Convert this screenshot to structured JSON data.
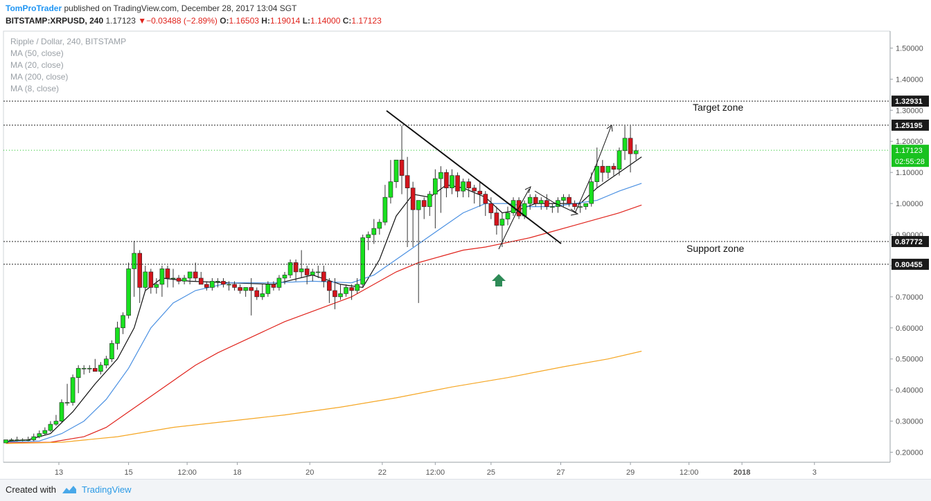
{
  "header": {
    "author": "TomProTrader",
    "published_text": "published on TradingView.com, December 28, 2017 13:04 SGT",
    "symbol": "BITSTAMP:XRPUSD, 240",
    "last": "1.17123",
    "change": "−0.03488 (−2.89%)",
    "o_label": "O:",
    "o_value": "1.16503",
    "h_label": "H:",
    "h_value": "1.19014",
    "l_label": "L:",
    "l_value": "1.14000",
    "c_label": "C:",
    "c_value": "1.17123"
  },
  "legend": {
    "title": "Ripple / Dollar, 240, BITSTAMP",
    "ma50": "MA (50, close)",
    "ma20": "MA (20, close)",
    "ma200": "MA (200, close)",
    "ma8": "MA (8, close)"
  },
  "footer": {
    "created_with": "Created with",
    "brand": "TradingView"
  },
  "colors": {
    "up": "#19e01f",
    "down": "#d4141c",
    "ma8": "#111111",
    "ma20": "#4a90e2",
    "ma50": "#e0231c",
    "ma200": "#f5a623",
    "arrow_up": "#2e8b57",
    "current_price_bg": "#19c21f"
  },
  "chart_data": {
    "type": "candlestick",
    "y_axis": {
      "range": [
        0.17,
        1.55
      ],
      "ticks": [
        "0.20000",
        "0.30000",
        "0.40000",
        "0.50000",
        "0.60000",
        "0.70000",
        "0.80000",
        "0.90000",
        "1.00000",
        "1.10000",
        "1.20000",
        "1.30000",
        "1.40000",
        "1.50000"
      ],
      "tick_values": [
        0.2,
        0.3,
        0.4,
        0.5,
        0.6,
        0.7,
        0.8,
        0.9,
        1.0,
        1.1,
        1.2,
        1.3,
        1.4,
        1.5
      ]
    },
    "x_axis": {
      "labels": [
        "13",
        "15",
        "12:00",
        "18",
        "20",
        "22",
        "12:00",
        "25",
        "27",
        "29",
        "12:00",
        "2018",
        "3"
      ],
      "label_bar_index": [
        9.5,
        22,
        32.5,
        41.5,
        54.5,
        67.5,
        77,
        87,
        99.5,
        112,
        122.5,
        132,
        145
      ]
    },
    "price_lines": [
      {
        "value": 1.32931,
        "label": "1.32931"
      },
      {
        "value": 1.25195,
        "label": "1.25195"
      },
      {
        "value": 0.87772,
        "label": "0.87772"
      },
      {
        "value": 0.80455,
        "label": "0.80455"
      }
    ],
    "zone_labels": [
      {
        "text": "Target zone",
        "price": 1.31
      },
      {
        "text": "Support zone",
        "price": 0.855
      }
    ],
    "current_price": {
      "label": "1.17123",
      "countdown": "02:55:28",
      "value": 1.17123
    },
    "candles": [
      [
        0.23,
        0.24,
        0.23,
        0.24
      ],
      [
        0.24,
        0.245,
        0.235,
        0.24
      ],
      [
        0.24,
        0.25,
        0.235,
        0.24
      ],
      [
        0.24,
        0.245,
        0.235,
        0.24
      ],
      [
        0.24,
        0.25,
        0.235,
        0.24
      ],
      [
        0.24,
        0.26,
        0.235,
        0.25
      ],
      [
        0.25,
        0.27,
        0.245,
        0.26
      ],
      [
        0.26,
        0.28,
        0.255,
        0.27
      ],
      [
        0.27,
        0.3,
        0.265,
        0.29
      ],
      [
        0.29,
        0.32,
        0.285,
        0.3
      ],
      [
        0.3,
        0.37,
        0.295,
        0.36
      ],
      [
        0.36,
        0.42,
        0.35,
        0.36
      ],
      [
        0.36,
        0.45,
        0.35,
        0.44
      ],
      [
        0.44,
        0.48,
        0.39,
        0.47
      ],
      [
        0.47,
        0.48,
        0.45,
        0.47
      ],
      [
        0.47,
        0.48,
        0.455,
        0.47
      ],
      [
        0.47,
        0.5,
        0.46,
        0.46
      ],
      [
        0.46,
        0.49,
        0.45,
        0.48
      ],
      [
        0.48,
        0.51,
        0.47,
        0.5
      ],
      [
        0.5,
        0.56,
        0.49,
        0.55
      ],
      [
        0.55,
        0.62,
        0.53,
        0.6
      ],
      [
        0.6,
        0.65,
        0.58,
        0.64
      ],
      [
        0.64,
        0.81,
        0.63,
        0.79
      ],
      [
        0.79,
        0.88,
        0.7,
        0.84
      ],
      [
        0.84,
        0.85,
        0.68,
        0.73
      ],
      [
        0.73,
        0.8,
        0.72,
        0.78
      ],
      [
        0.78,
        0.79,
        0.71,
        0.73
      ],
      [
        0.73,
        0.76,
        0.71,
        0.74
      ],
      [
        0.74,
        0.8,
        0.7,
        0.79
      ],
      [
        0.79,
        0.8,
        0.73,
        0.76
      ],
      [
        0.76,
        0.79,
        0.73,
        0.76
      ],
      [
        0.76,
        0.77,
        0.74,
        0.75
      ],
      [
        0.75,
        0.77,
        0.74,
        0.76
      ],
      [
        0.76,
        0.78,
        0.74,
        0.78
      ],
      [
        0.78,
        0.81,
        0.75,
        0.76
      ],
      [
        0.76,
        0.78,
        0.74,
        0.74
      ],
      [
        0.74,
        0.75,
        0.72,
        0.73
      ],
      [
        0.73,
        0.76,
        0.72,
        0.75
      ],
      [
        0.75,
        0.76,
        0.73,
        0.75
      ],
      [
        0.75,
        0.76,
        0.73,
        0.74
      ],
      [
        0.74,
        0.75,
        0.72,
        0.74
      ],
      [
        0.74,
        0.75,
        0.72,
        0.73
      ],
      [
        0.73,
        0.74,
        0.71,
        0.72
      ],
      [
        0.72,
        0.73,
        0.7,
        0.73
      ],
      [
        0.73,
        0.76,
        0.64,
        0.72
      ],
      [
        0.72,
        0.73,
        0.69,
        0.7
      ],
      [
        0.7,
        0.74,
        0.69,
        0.71
      ],
      [
        0.71,
        0.75,
        0.7,
        0.74
      ],
      [
        0.74,
        0.75,
        0.72,
        0.73
      ],
      [
        0.73,
        0.77,
        0.72,
        0.76
      ],
      [
        0.76,
        0.78,
        0.74,
        0.77
      ],
      [
        0.77,
        0.82,
        0.76,
        0.81
      ],
      [
        0.81,
        0.82,
        0.75,
        0.78
      ],
      [
        0.78,
        0.85,
        0.76,
        0.79
      ],
      [
        0.79,
        0.8,
        0.74,
        0.77
      ],
      [
        0.77,
        0.79,
        0.75,
        0.78
      ],
      [
        0.78,
        0.8,
        0.76,
        0.78
      ],
      [
        0.78,
        0.8,
        0.73,
        0.75
      ],
      [
        0.75,
        0.76,
        0.68,
        0.72
      ],
      [
        0.72,
        0.76,
        0.66,
        0.7
      ],
      [
        0.7,
        0.74,
        0.69,
        0.71
      ],
      [
        0.71,
        0.74,
        0.7,
        0.73
      ],
      [
        0.73,
        0.74,
        0.69,
        0.72
      ],
      [
        0.72,
        0.76,
        0.71,
        0.74
      ],
      [
        0.74,
        0.9,
        0.73,
        0.89
      ],
      [
        0.89,
        0.91,
        0.85,
        0.9
      ],
      [
        0.9,
        0.95,
        0.87,
        0.92
      ],
      [
        0.92,
        0.95,
        0.9,
        0.94
      ],
      [
        0.94,
        1.06,
        0.93,
        1.02
      ],
      [
        1.02,
        1.14,
        1.0,
        1.07
      ],
      [
        1.07,
        1.14,
        1.05,
        1.14
      ],
      [
        1.14,
        1.25,
        1.03,
        1.09
      ],
      [
        1.09,
        1.15,
        0.86,
        1.05
      ],
      [
        1.05,
        1.07,
        0.86,
        0.98
      ],
      [
        0.98,
        1.0,
        0.68,
        1.01
      ],
      [
        1.01,
        1.02,
        0.95,
        0.99
      ],
      [
        0.99,
        1.04,
        0.96,
        1.03
      ],
      [
        1.03,
        1.11,
        0.92,
        1.08
      ],
      [
        1.08,
        1.12,
        0.97,
        1.1
      ],
      [
        1.1,
        1.11,
        1.02,
        1.05
      ],
      [
        1.05,
        1.11,
        1.03,
        1.09
      ],
      [
        1.09,
        1.1,
        1.02,
        1.04
      ],
      [
        1.04,
        1.08,
        1.02,
        1.07
      ],
      [
        1.07,
        1.08,
        1.02,
        1.05
      ],
      [
        1.05,
        1.06,
        1.0,
        1.04
      ],
      [
        1.04,
        1.07,
        0.99,
        1.03
      ],
      [
        1.03,
        1.04,
        0.96,
        1.0
      ],
      [
        1.0,
        1.02,
        0.95,
        0.97
      ],
      [
        0.97,
        0.99,
        0.9,
        0.93
      ],
      [
        0.93,
        0.97,
        0.86,
        0.95
      ],
      [
        0.95,
        0.99,
        0.93,
        0.97
      ],
      [
        0.97,
        1.02,
        0.96,
        1.01
      ],
      [
        1.01,
        1.02,
        0.95,
        0.96
      ],
      [
        0.96,
        1.01,
        0.95,
        1.0
      ],
      [
        1.0,
        1.03,
        0.98,
        1.02
      ],
      [
        1.02,
        1.03,
        0.99,
        1.0
      ],
      [
        1.0,
        1.02,
        0.98,
        1.01
      ],
      [
        1.01,
        1.03,
        0.98,
        0.99
      ],
      [
        0.99,
        1.0,
        0.97,
        0.99
      ],
      [
        0.99,
        1.02,
        0.97,
        1.01
      ],
      [
        1.01,
        1.03,
        0.99,
        1.02
      ],
      [
        1.02,
        1.03,
        0.99,
        1.0
      ],
      [
        1.0,
        1.01,
        0.98,
        0.99
      ],
      [
        0.99,
        1.0,
        0.97,
        0.99
      ],
      [
        0.99,
        1.0,
        0.98,
        1.0
      ],
      [
        1.0,
        1.1,
        0.99,
        1.07
      ],
      [
        1.07,
        1.18,
        1.05,
        1.12
      ],
      [
        1.12,
        1.14,
        1.07,
        1.1
      ],
      [
        1.1,
        1.12,
        1.08,
        1.12
      ],
      [
        1.12,
        1.13,
        1.09,
        1.11
      ],
      [
        1.11,
        1.18,
        1.09,
        1.17
      ],
      [
        1.17,
        1.25,
        1.14,
        1.21
      ],
      [
        1.21,
        1.25,
        1.1,
        1.16
      ],
      [
        1.16,
        1.19,
        1.14,
        1.17
      ]
    ],
    "moving_averages": [
      {
        "name": "MA (8, close)",
        "color": "#111111",
        "points": [
          [
            0,
            0.235
          ],
          [
            4,
            0.24
          ],
          [
            8,
            0.26
          ],
          [
            12,
            0.33
          ],
          [
            16,
            0.42
          ],
          [
            20,
            0.5
          ],
          [
            23,
            0.6
          ],
          [
            25,
            0.72
          ],
          [
            28,
            0.76
          ],
          [
            33,
            0.75
          ],
          [
            40,
            0.745
          ],
          [
            48,
            0.74
          ],
          [
            55,
            0.77
          ],
          [
            60,
            0.74
          ],
          [
            64,
            0.73
          ],
          [
            67,
            0.82
          ],
          [
            70,
            0.96
          ],
          [
            73,
            1.03
          ],
          [
            76,
            1.02
          ],
          [
            79,
            1.06
          ],
          [
            82,
            1.05
          ],
          [
            86,
            1.02
          ],
          [
            89,
            0.97
          ],
          [
            92,
            0.98
          ],
          [
            95,
            1.0
          ],
          [
            99,
            1.0
          ],
          [
            103,
            1.0
          ],
          [
            106,
            1.05
          ],
          [
            110,
            1.1
          ],
          [
            114,
            1.15
          ]
        ]
      },
      {
        "name": "MA (20, close)",
        "color": "#4a90e2",
        "points": [
          [
            0,
            0.233
          ],
          [
            6,
            0.236
          ],
          [
            10,
            0.26
          ],
          [
            14,
            0.3
          ],
          [
            18,
            0.37
          ],
          [
            22,
            0.47
          ],
          [
            26,
            0.6
          ],
          [
            30,
            0.68
          ],
          [
            34,
            0.72
          ],
          [
            40,
            0.745
          ],
          [
            48,
            0.745
          ],
          [
            55,
            0.75
          ],
          [
            62,
            0.745
          ],
          [
            66,
            0.77
          ],
          [
            70,
            0.82
          ],
          [
            74,
            0.87
          ],
          [
            78,
            0.92
          ],
          [
            82,
            0.97
          ],
          [
            86,
            1.0
          ],
          [
            90,
            1.0
          ],
          [
            94,
            0.99
          ],
          [
            98,
            0.99
          ],
          [
            102,
            1.0
          ],
          [
            106,
            1.01
          ],
          [
            110,
            1.04
          ],
          [
            114,
            1.065
          ]
        ]
      },
      {
        "name": "MA (50, close)",
        "color": "#e0231c",
        "points": [
          [
            0,
            0.23
          ],
          [
            8,
            0.232
          ],
          [
            14,
            0.25
          ],
          [
            18,
            0.28
          ],
          [
            22,
            0.33
          ],
          [
            26,
            0.38
          ],
          [
            30,
            0.43
          ],
          [
            34,
            0.48
          ],
          [
            38,
            0.52
          ],
          [
            44,
            0.57
          ],
          [
            50,
            0.62
          ],
          [
            56,
            0.66
          ],
          [
            62,
            0.7
          ],
          [
            66,
            0.74
          ],
          [
            70,
            0.78
          ],
          [
            74,
            0.81
          ],
          [
            78,
            0.83
          ],
          [
            82,
            0.85
          ],
          [
            86,
            0.86
          ],
          [
            90,
            0.875
          ],
          [
            94,
            0.89
          ],
          [
            98,
            0.91
          ],
          [
            102,
            0.93
          ],
          [
            106,
            0.95
          ],
          [
            110,
            0.97
          ],
          [
            114,
            0.995
          ]
        ]
      },
      {
        "name": "MA (200, close)",
        "color": "#f5a623",
        "points": [
          [
            0,
            0.228
          ],
          [
            10,
            0.232
          ],
          [
            20,
            0.25
          ],
          [
            30,
            0.28
          ],
          [
            40,
            0.3
          ],
          [
            50,
            0.32
          ],
          [
            60,
            0.345
          ],
          [
            70,
            0.375
          ],
          [
            80,
            0.41
          ],
          [
            90,
            0.44
          ],
          [
            100,
            0.475
          ],
          [
            108,
            0.5
          ],
          [
            114,
            0.525
          ]
        ]
      }
    ]
  }
}
